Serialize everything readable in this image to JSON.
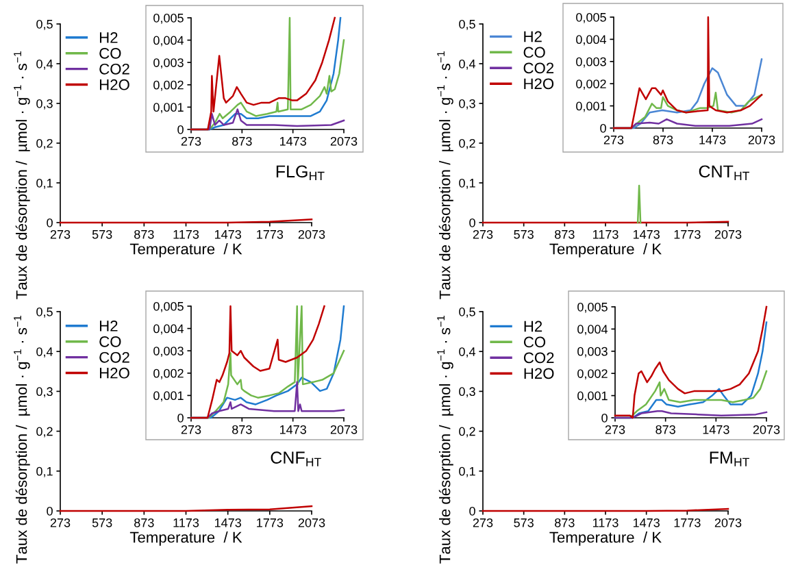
{
  "chart_data": [
    {
      "type": "line",
      "xlabel": "Temperature  / K",
      "ylabel": "Taux de désorption /  µmol · g$^{−1}$ · s$^{−1}$",
      "grid": false,
      "annotations": [
        "FLG$_{HT}$"
      ],
      "x": [
        273,
        573,
        873,
        1173,
        1473,
        1773,
        2073
      ],
      "xlim": [
        273,
        2073
      ],
      "xticks": [
        273,
        573,
        873,
        1173,
        1473,
        1773,
        2073
      ],
      "ylim": [
        0,
        0.5
      ],
      "yticks": [
        0,
        {
          "value": 0.1,
          "label": "0,1"
        },
        {
          "value": 0.2,
          "label": "0,2"
        },
        {
          "value": 0.3,
          "label": "0,3"
        },
        {
          "value": 0.4,
          "label": "0,4"
        },
        {
          "value": 0.5,
          "label": "0,5"
        }
      ],
      "series": [
        {
          "color": "#c00000",
          "values": [
            0,
            0,
            0,
            0,
            0,
            0.002,
            0.008
          ]
        }
      ]
    },
    {
      "type": "line",
      "legend": "left",
      "grid": false,
      "xlim": [
        273,
        2073
      ],
      "xticks": [
        273,
        873,
        1473,
        2073
      ],
      "ylim": [
        0,
        0.005
      ],
      "yticks": [
        0,
        {
          "value": 0.001,
          "label": "0,001"
        },
        {
          "value": 0.002,
          "label": "0,002"
        },
        {
          "value": 0.003,
          "label": "0,003"
        },
        {
          "value": 0.004,
          "label": "0,004"
        },
        {
          "value": 0.005,
          "label": "0,005"
        }
      ],
      "series": [
        {
          "name": "H2",
          "color": "#1f7bd0",
          "x": [
            273,
            490,
            554,
            658,
            739,
            793,
            860,
            928,
            1063,
            1197,
            1386,
            1521,
            1683,
            1791,
            1871,
            1952,
            2006,
            2033
          ],
          "values": [
            0,
            0,
            0.0001,
            0.0002,
            0.0005,
            0.0007,
            0.0007,
            0.0005,
            0.0005,
            0.0006,
            0.0006,
            0.0006,
            0.0006,
            0.0008,
            0.0013,
            0.0025,
            0.004,
            0.005
          ]
        },
        {
          "name": "CO",
          "color": "#70b84a",
          "x": [
            273,
            490,
            554,
            610,
            645,
            739,
            820,
            860,
            928,
            1036,
            1170,
            1278,
            1292,
            1300,
            1413,
            1435,
            1446,
            1575,
            1683,
            1791,
            1845,
            1871,
            1903,
            1925,
            1966,
            2019,
            2073
          ],
          "values": [
            0,
            0,
            0.0003,
            0.0007,
            0.0005,
            0.0008,
            0.0011,
            0.0012,
            0.0008,
            0.0006,
            0.0007,
            0.0008,
            0.0012,
            0.0008,
            0.0009,
            0.005,
            0.0009,
            0.0009,
            0.0011,
            0.0015,
            0.0019,
            0.0016,
            0.0024,
            0.0017,
            0.0018,
            0.0025,
            0.004
          ]
        },
        {
          "name": "CO2",
          "color": "#7030a0",
          "x": [
            273,
            490,
            518,
            554,
            605,
            658,
            766,
            820,
            860,
            928,
            1251,
            1521,
            1925,
            2073
          ],
          "values": [
            0,
            0,
            0.0007,
            0.0002,
            0.0004,
            0.0002,
            0.0003,
            0.0009,
            0.0004,
            0.0002,
            0.0002,
            0.00015,
            0.0002,
            0.0004
          ]
        },
        {
          "name": "H2O",
          "color": "#c00000",
          "x": [
            273,
            470,
            510,
            518,
            537,
            605,
            658,
            685,
            766,
            812,
            860,
            928,
            1009,
            1103,
            1197,
            1305,
            1386,
            1467,
            1521,
            1629,
            1737,
            1818,
            1898,
            1966
          ],
          "values": [
            0,
            0,
            0.0008,
            0.0024,
            0.0008,
            0.0033,
            0.0014,
            0.0012,
            0.0015,
            0.0019,
            0.0016,
            0.0012,
            0.0011,
            0.0012,
            0.0012,
            0.0014,
            0.0014,
            0.0013,
            0.0013,
            0.0016,
            0.0022,
            0.003,
            0.004,
            0.005
          ]
        }
      ]
    },
    {
      "type": "line",
      "xlabel": "Temperature  / K",
      "ylabel": "Taux de désorption /  µmol · g$^{−1}$ · s$^{−1}$",
      "grid": false,
      "annotations": [
        "CNT$_{HT}$"
      ],
      "x": [
        273,
        573,
        873,
        1173,
        1473,
        1773,
        2073
      ],
      "xlim": [
        273,
        2073
      ],
      "xticks": [
        273,
        573,
        873,
        1173,
        1473,
        1773,
        2073
      ],
      "ylim": [
        0,
        0.5
      ],
      "yticks": [
        0,
        {
          "value": 0.1,
          "label": "0,1"
        },
        {
          "value": 0.2,
          "label": "0,2"
        },
        {
          "value": 0.3,
          "label": "0,3"
        },
        {
          "value": 0.4,
          "label": "0,4"
        },
        {
          "value": 0.5,
          "label": "0,5"
        }
      ],
      "series": [
        {
          "color": "#c00000",
          "values": [
            0,
            0,
            0,
            0,
            0,
            0,
            0.002
          ]
        },
        {
          "color": "#70b84a",
          "x": [
            1410,
            1420,
            1430
          ],
          "values": [
            0,
            0.093,
            0
          ]
        }
      ]
    },
    {
      "type": "line",
      "legend": "left",
      "grid": false,
      "xlim": [
        273,
        2073
      ],
      "xticks": [
        273,
        873,
        1473,
        2073
      ],
      "ylim": [
        0,
        0.005
      ],
      "yticks": [
        0,
        {
          "value": 0.001,
          "label": "0,001"
        },
        {
          "value": 0.002,
          "label": "0,002"
        },
        {
          "value": 0.003,
          "label": "0,003"
        },
        {
          "value": 0.004,
          "label": "0,004"
        },
        {
          "value": 0.005,
          "label": "0,005"
        }
      ],
      "series": [
        {
          "name": "H2",
          "color": "#4a86d4",
          "x": [
            273,
            516,
            600,
            711,
            863,
            1043,
            1209,
            1292,
            1375,
            1472,
            1541,
            1652,
            1763,
            1874,
            1984,
            2073
          ],
          "values": [
            0,
            0,
            0.0002,
            0.0007,
            0.0008,
            0.0007,
            0.0008,
            0.0012,
            0.002,
            0.0027,
            0.0025,
            0.0015,
            0.001,
            0.001,
            0.0015,
            0.0031
          ]
        },
        {
          "name": "CO",
          "color": "#70b84a",
          "x": [
            273,
            489,
            586,
            655,
            738,
            794,
            849,
            871,
            932,
            1043,
            1154,
            1320,
            1403,
            1486,
            1514,
            1541,
            1707,
            1819,
            1915,
            2073
          ],
          "values": [
            0,
            0,
            0.0003,
            0.0005,
            0.0011,
            0.0009,
            0.0009,
            0.0014,
            0.001,
            0.0008,
            0.0007,
            0.0009,
            0.0009,
            0.001,
            0.0016,
            0.0008,
            0.0007,
            0.0008,
            0.0012,
            0.0015
          ]
        },
        {
          "name": "CO2",
          "color": "#7030a0",
          "x": [
            273,
            489,
            544,
            711,
            821,
            918,
            1043,
            1265,
            1417,
            1680,
            1956,
            2073
          ],
          "values": [
            0,
            0,
            0.0002,
            0.00025,
            0.0002,
            0.0004,
            0.0002,
            0.0001,
            0.0001,
            0.0001,
            0.0002,
            0.0004
          ]
        },
        {
          "name": "H2O",
          "color": "#c00000",
          "x": [
            273,
            489,
            586,
            664,
            738,
            780,
            849,
            871,
            932,
            1043,
            1154,
            1265,
            1417,
            1422,
            1436,
            1514,
            1652,
            1819,
            1929,
            2073
          ],
          "values": [
            0,
            0,
            0.0018,
            0.0013,
            0.0018,
            0.0018,
            0.0015,
            0.0017,
            0.0012,
            0.0008,
            0.0007,
            0.00075,
            0.0008,
            0.005,
            0.001,
            0.0008,
            0.0007,
            0.0008,
            0.001,
            0.0015
          ]
        }
      ]
    },
    {
      "type": "line",
      "xlabel": "Temperature  / K",
      "ylabel": "Taux de désorption /  µmol · g$^{−1}$ · s$^{−1}$",
      "grid": false,
      "annotations": [
        "CNF$_{HT}$"
      ],
      "x": [
        273,
        573,
        873,
        1173,
        1473,
        1773,
        2073
      ],
      "xlim": [
        273,
        2073
      ],
      "xticks": [
        273,
        573,
        873,
        1173,
        1473,
        1773,
        2073
      ],
      "ylim": [
        0,
        0.5
      ],
      "yticks": [
        0,
        {
          "value": 0.1,
          "label": "0,1"
        },
        {
          "value": 0.2,
          "label": "0,2"
        },
        {
          "value": 0.3,
          "label": "0,3"
        },
        {
          "value": 0.4,
          "label": "0,4"
        },
        {
          "value": 0.5,
          "label": "0,5"
        }
      ],
      "series": [
        {
          "color": "#c00000",
          "values": [
            0,
            0,
            0,
            0,
            0.003,
            0.004,
            0.012
          ]
        }
      ]
    },
    {
      "type": "line",
      "legend": "left",
      "grid": false,
      "xlim": [
        273,
        2073
      ],
      "xticks": [
        273,
        873,
        1473,
        2073
      ],
      "ylim": [
        0,
        0.005
      ],
      "yticks": [
        0,
        {
          "value": 0.001,
          "label": "0,001"
        },
        {
          "value": 0.002,
          "label": "0,002"
        },
        {
          "value": 0.003,
          "label": "0,003"
        },
        {
          "value": 0.004,
          "label": "0,004"
        },
        {
          "value": 0.005,
          "label": "0,005"
        }
      ],
      "series": [
        {
          "name": "H2",
          "color": "#1f7bd0",
          "x": [
            273,
            507,
            602,
            697,
            791,
            858,
            926,
            1034,
            1169,
            1279,
            1414,
            1522,
            1576,
            1684,
            1792,
            1873,
            1954,
            2033,
            2073
          ],
          "values": [
            0,
            0,
            0.0003,
            0.0009,
            0.0008,
            0.0009,
            0.0007,
            0.0006,
            0.0008,
            0.001,
            0.0012,
            0.0015,
            0.0018,
            0.0016,
            0.0012,
            0.0013,
            0.002,
            0.0035,
            0.005
          ]
        },
        {
          "name": "CO",
          "color": "#70b84a",
          "x": [
            273,
            481,
            562,
            656,
            710,
            737,
            745,
            818,
            858,
            870,
            899,
            980,
            1061,
            1196,
            1306,
            1414,
            1495,
            1522,
            1530,
            1576,
            1590,
            1711,
            1819,
            1954,
            2073
          ],
          "values": [
            0,
            0,
            0.0003,
            0.0007,
            0.0015,
            0.0029,
            0.0019,
            0.0015,
            0.0017,
            0.0013,
            0.0012,
            0.001,
            0.0009,
            0.001,
            0.0011,
            0.0014,
            0.0016,
            0.005,
            0.0015,
            0.005,
            0.0015,
            0.0016,
            0.0017,
            0.002,
            0.003
          ]
        },
        {
          "name": "CO2",
          "color": "#7030a0",
          "x": [
            273,
            467,
            521,
            602,
            710,
            737,
            751,
            858,
            953,
            1252,
            1495,
            1522,
            1536,
            1557,
            1576,
            1792,
            1954,
            2073
          ],
          "values": [
            0,
            0,
            0.0002,
            0.0003,
            0.0004,
            0.0007,
            0.0004,
            0.0006,
            0.0004,
            0.0003,
            0.0003,
            0.0016,
            0.0003,
            0.0006,
            0.0003,
            0.0003,
            0.0003,
            0.00035
          ]
        },
        {
          "name": "H2O",
          "color": "#c00000",
          "x": [
            273,
            467,
            521,
            575,
            607,
            643,
            697,
            724,
            737,
            751,
            818,
            858,
            899,
            1007,
            1088,
            1196,
            1293,
            1306,
            1387,
            1522,
            1630,
            1711,
            1778,
            1843
          ],
          "values": [
            0,
            0,
            0.0008,
            0.0017,
            0.0016,
            0.0019,
            0.0025,
            0.0029,
            0.005,
            0.003,
            0.0028,
            0.003,
            0.0027,
            0.0023,
            0.0021,
            0.0022,
            0.0035,
            0.0026,
            0.0025,
            0.0027,
            0.003,
            0.0035,
            0.0042,
            0.005
          ]
        }
      ]
    },
    {
      "type": "line",
      "xlabel": "Temperature  / K",
      "ylabel": "Taux de désorption /  µmol · g$^{−1}$ · s$^{−1}$",
      "grid": false,
      "annotations": [
        "FM$_{HT}$"
      ],
      "x": [
        273,
        573,
        873,
        1173,
        1473,
        1773,
        2073
      ],
      "xlim": [
        273,
        2073
      ],
      "xticks": [
        273,
        573,
        873,
        1173,
        1473,
        1773,
        2073
      ],
      "ylim": [
        0,
        0.5
      ],
      "yticks": [
        0,
        {
          "value": 0.1,
          "label": "0,1"
        },
        {
          "value": 0.2,
          "label": "0,2"
        },
        {
          "value": 0.3,
          "label": "0,3"
        },
        {
          "value": 0.4,
          "label": "0,4"
        },
        {
          "value": 0.5,
          "label": "0,5"
        }
      ],
      "series": [
        {
          "color": "#c00000",
          "values": [
            0,
            0,
            0,
            0,
            0,
            0.001,
            0.005
          ]
        }
      ]
    },
    {
      "type": "line",
      "legend": "left",
      "grid": false,
      "xlim": [
        273,
        2073
      ],
      "xticks": [
        273,
        873,
        1473,
        2073
      ],
      "ylim": [
        0,
        0.005
      ],
      "yticks": [
        0,
        {
          "value": 0.001,
          "label": "0,001"
        },
        {
          "value": 0.002,
          "label": "0,002"
        },
        {
          "value": 0.003,
          "label": "0,003"
        },
        {
          "value": 0.004,
          "label": "0,004"
        },
        {
          "value": 0.005,
          "label": "0,005"
        }
      ],
      "series": [
        {
          "name": "H2",
          "color": "#1f7bd0",
          "x": [
            273,
            483,
            558,
            667,
            762,
            830,
            885,
            1021,
            1157,
            1320,
            1428,
            1510,
            1564,
            1646,
            1782,
            1891,
            1973,
            2027,
            2073
          ],
          "values": [
            0,
            0,
            0.0002,
            0.0003,
            0.0008,
            0.0008,
            0.0006,
            0.0005,
            0.0006,
            0.0007,
            0.001,
            0.0013,
            0.001,
            0.0006,
            0.0006,
            0.001,
            0.002,
            0.003,
            0.0043
          ]
        },
        {
          "name": "CO",
          "color": "#70b84a",
          "x": [
            273,
            450,
            531,
            640,
            749,
            803,
            815,
            858,
            912,
            1048,
            1211,
            1401,
            1537,
            1673,
            1809,
            1918,
            1999,
            2073
          ],
          "values": [
            0,
            0,
            0.0003,
            0.0006,
            0.0012,
            0.0016,
            0.001,
            0.0013,
            0.0008,
            0.0007,
            0.0008,
            0.0008,
            0.0008,
            0.0007,
            0.0008,
            0.0009,
            0.0013,
            0.0021
          ]
        },
        {
          "name": "CO2",
          "color": "#7030a0",
          "x": [
            273,
            483,
            586,
            776,
            830,
            939,
            1265,
            1537,
            1946,
            2073
          ],
          "values": [
            0,
            0,
            0.0002,
            0.0003,
            0.0003,
            0.0002,
            0.00015,
            0.0001,
            0.00015,
            0.00025
          ]
        },
        {
          "name": "H2O",
          "color": "#c00000",
          "x": [
            273,
            450,
            483,
            504,
            553,
            586,
            654,
            708,
            749,
            803,
            844,
            912,
            1021,
            1102,
            1211,
            1401,
            1537,
            1646,
            1755,
            1864,
            1973,
            2027,
            2073
          ],
          "values": [
            0.0001,
            0.0001,
            0,
            0.001,
            0.002,
            0.0021,
            0.0016,
            0.0019,
            0.0022,
            0.0025,
            0.0021,
            0.0017,
            0.0013,
            0.0011,
            0.0012,
            0.0012,
            0.0012,
            0.0013,
            0.0015,
            0.002,
            0.003,
            0.004,
            0.005
          ]
        }
      ]
    }
  ]
}
